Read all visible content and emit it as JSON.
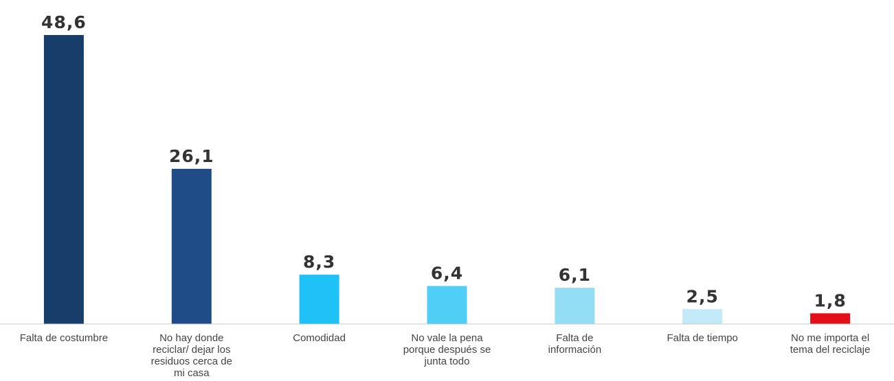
{
  "chart_data": {
    "type": "bar",
    "categories": [
      "Falta de costumbre",
      "No hay donde reciclar/ dejar los residuos cerca de mi casa",
      "Comodidad",
      "No vale la pena porque después se junta todo",
      "Falta de información",
      "Falta de tiempo",
      "No me importa el tema del reciclaje"
    ],
    "category_lines": [
      [
        "Falta de costumbre"
      ],
      [
        "No hay donde",
        "reciclar/ dejar los",
        "residuos cerca de",
        "mi casa"
      ],
      [
        "Comodidad"
      ],
      [
        "No vale la pena",
        "porque después se",
        "junta todo"
      ],
      [
        "Falta de",
        "información"
      ],
      [
        "Falta de tiempo"
      ],
      [
        "No me importa el",
        "tema del reciclaje"
      ]
    ],
    "values": [
      48.6,
      26.1,
      8.3,
      6.4,
      6.1,
      2.5,
      1.8
    ],
    "value_labels": [
      "48,6",
      "26,1",
      "8,3",
      "6,4",
      "6,1",
      "2,5",
      "1,8"
    ],
    "colors": [
      "#173d6b",
      "#1f4c87",
      "#1ec2f7",
      "#4fcef6",
      "#94def5",
      "#c3eaf8",
      "#e3101a"
    ],
    "title": "",
    "xlabel": "",
    "ylabel": "",
    "ylim": [
      0,
      48.6
    ],
    "grid": false,
    "legend": "none"
  }
}
